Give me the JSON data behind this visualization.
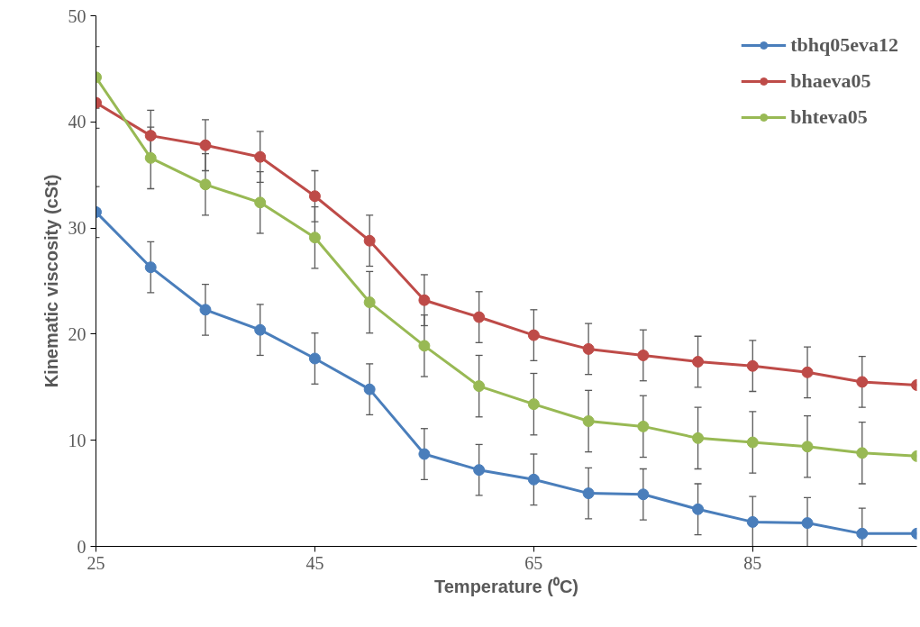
{
  "chart_data": {
    "type": "line",
    "xlabel": "Temperature (⁰C)",
    "ylabel": "Kinematic viscosity (cSt)",
    "x": [
      25,
      30,
      35,
      40,
      45,
      50,
      55,
      60,
      65,
      70,
      75,
      80,
      85,
      90,
      95,
      100
    ],
    "xlim": [
      25,
      100
    ],
    "xticks": [
      25,
      45,
      65,
      85
    ],
    "ylim": [
      0,
      50
    ],
    "yticks": [
      0,
      10,
      20,
      30,
      40,
      50
    ],
    "grid": false,
    "legend": "top right",
    "marker": "circle",
    "line_style": "solid",
    "series": [
      {
        "name": "tbhq05eva12",
        "color": "#4a7ebb",
        "values": [
          31.5,
          26.3,
          22.3,
          20.4,
          17.7,
          14.8,
          8.7,
          7.2,
          6.3,
          5.0,
          4.9,
          3.5,
          2.3,
          2.2,
          1.2,
          1.2
        ],
        "errors": [
          2.4,
          2.4,
          2.4,
          2.4,
          2.4,
          2.4,
          2.4,
          2.4,
          2.4,
          2.4,
          2.4,
          2.4,
          2.4,
          2.4,
          2.4,
          null
        ]
      },
      {
        "name": "bhaeva05",
        "color": "#be4b48",
        "values": [
          41.8,
          38.7,
          37.8,
          36.7,
          33.0,
          28.8,
          23.2,
          21.6,
          19.9,
          18.6,
          18.0,
          17.4,
          17.0,
          16.4,
          15.5,
          15.2
        ],
        "errors": [
          2.4,
          2.4,
          2.4,
          2.4,
          2.4,
          2.4,
          2.4,
          2.4,
          2.4,
          2.4,
          2.4,
          2.4,
          2.4,
          2.4,
          2.4,
          null
        ]
      },
      {
        "name": "bhteva05",
        "color": "#98b954",
        "values": [
          44.2,
          36.6,
          34.1,
          32.4,
          29.1,
          23.0,
          18.9,
          15.1,
          13.4,
          11.8,
          11.3,
          10.2,
          9.8,
          9.4,
          8.8,
          8.5
        ],
        "errors": [
          2.9,
          2.9,
          2.9,
          2.9,
          2.9,
          2.9,
          2.9,
          2.9,
          2.9,
          2.9,
          2.9,
          2.9,
          2.9,
          2.9,
          2.9,
          null
        ]
      }
    ]
  }
}
